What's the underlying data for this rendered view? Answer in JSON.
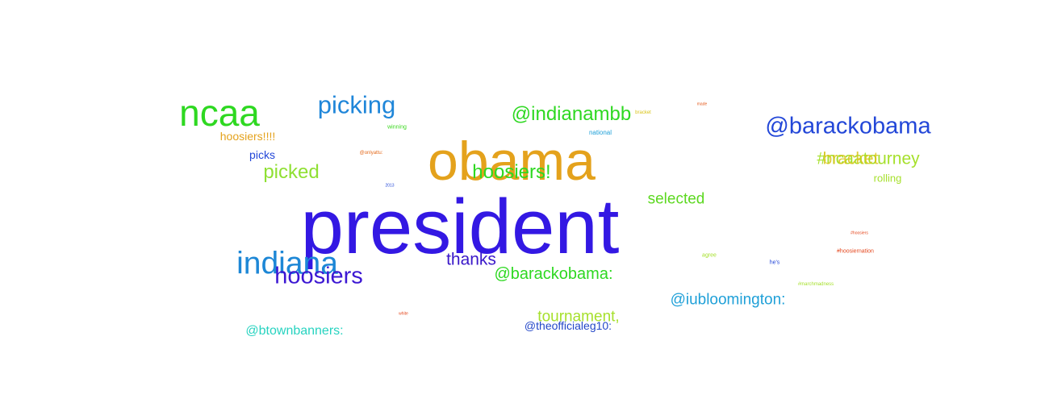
{
  "words": [
    {
      "text": "president",
      "color": "#3318e3"
    },
    {
      "text": "obama",
      "color": "#e4a21c"
    },
    {
      "text": "ncaa",
      "color": "#2ed821"
    },
    {
      "text": "@barackobama",
      "color": "#2347d8"
    },
    {
      "text": "indiana",
      "color": "#1d87d6"
    },
    {
      "text": "picking",
      "color": "#1f86d9"
    },
    {
      "text": "hoosiers",
      "color": "#3c17d3"
    },
    {
      "text": "@indianambb",
      "color": "#2ed821"
    },
    {
      "text": "hoosiers!",
      "color": "#2ed821"
    },
    {
      "text": "picked",
      "color": "#8fe033"
    },
    {
      "text": "#ncaatourney",
      "color": "#a6e02c"
    },
    {
      "text": "bracket",
      "color": "#d9c419"
    },
    {
      "text": "thanks",
      "color": "#3a18c9"
    },
    {
      "text": "@barackobama:",
      "color": "#2ed821"
    },
    {
      "text": "@iubloomington:",
      "color": "#1fa0d8"
    },
    {
      "text": "tournament,",
      "color": "#a6e02c"
    },
    {
      "text": "selected",
      "color": "#5cd820"
    },
    {
      "text": "@btownbanners:",
      "color": "#27d3c0"
    },
    {
      "text": "@theofficialeg10:",
      "color": "#2347c8"
    },
    {
      "text": "hoosiers!!!!",
      "color": "#e4a21c"
    },
    {
      "text": "picks",
      "color": "#2347d8"
    },
    {
      "text": "rolling",
      "color": "#a6e02c"
    },
    {
      "text": "national",
      "color": "#1fa0d8"
    },
    {
      "text": "winning",
      "color": "#3cd820"
    },
    {
      "text": "@onlyattu:",
      "color": "#e46a1c"
    },
    {
      "text": "bracket",
      "color": "#d9c419"
    },
    {
      "text": "made",
      "color": "#e45a1c"
    },
    {
      "text": "#hoosiernation",
      "color": "#e4461c"
    },
    {
      "text": "he's",
      "color": "#2347d8"
    },
    {
      "text": "agree",
      "color": "#a6e02c"
    },
    {
      "text": "#marchmadness",
      "color": "#a6e02c"
    },
    {
      "text": "#hoosiers",
      "color": "#e4461c"
    },
    {
      "text": "white",
      "color": "#e4461c"
    },
    {
      "text": "2013",
      "color": "#2347d8"
    }
  ]
}
